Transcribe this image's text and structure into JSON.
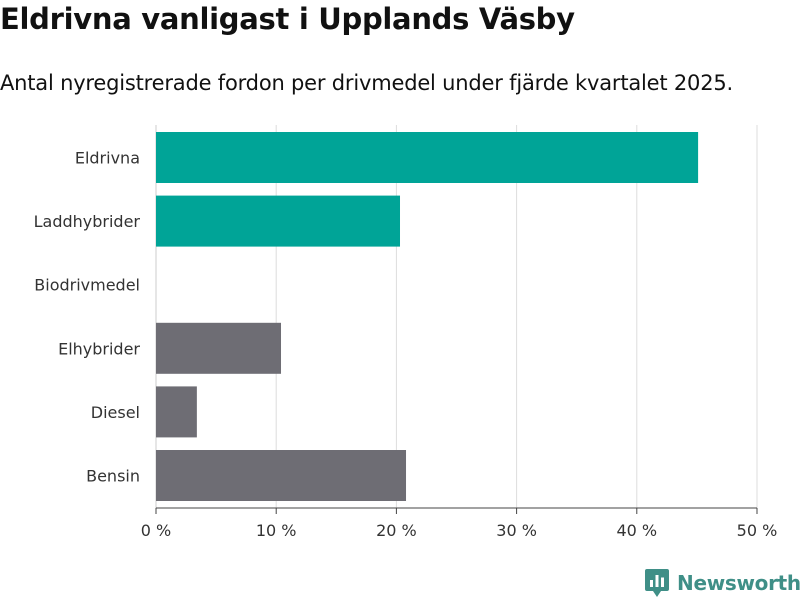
{
  "header": {
    "title": "Eldrivna vanligast i Upplands Väsby",
    "subtitle": "Antal nyregistrerade fordon per drivmedel under fjärde kvartalet 2025."
  },
  "logo": {
    "text": "Newsworthy",
    "icon": "bar-chart-badge-icon"
  },
  "colors": {
    "highlight": "#00a497",
    "other": "#6e6d74",
    "grid": "#dddddd",
    "brand": "#3f8f87"
  },
  "chart_data": {
    "type": "bar",
    "orientation": "horizontal",
    "title": "Eldrivna vanligast i Upplands Väsby",
    "subtitle": "Antal nyregistrerade fordon per drivmedel under fjärde kvartalet 2025.",
    "categories": [
      "Eldrivna",
      "Laddhybrider",
      "Biodrivmedel",
      "Elhybrider",
      "Diesel",
      "Bensin"
    ],
    "values": [
      45.1,
      20.3,
      0,
      10.4,
      3.4,
      20.8
    ],
    "highlighted": [
      true,
      true,
      false,
      false,
      false,
      false
    ],
    "unit": "%",
    "xlabel": "",
    "ylabel": "",
    "xlim": [
      0,
      50
    ],
    "xticks": [
      0,
      10,
      20,
      30,
      40,
      50
    ],
    "xtick_labels": [
      "0 %",
      "10 %",
      "20 %",
      "30 %",
      "40 %",
      "50 %"
    ],
    "grid": true,
    "legend": "none"
  }
}
